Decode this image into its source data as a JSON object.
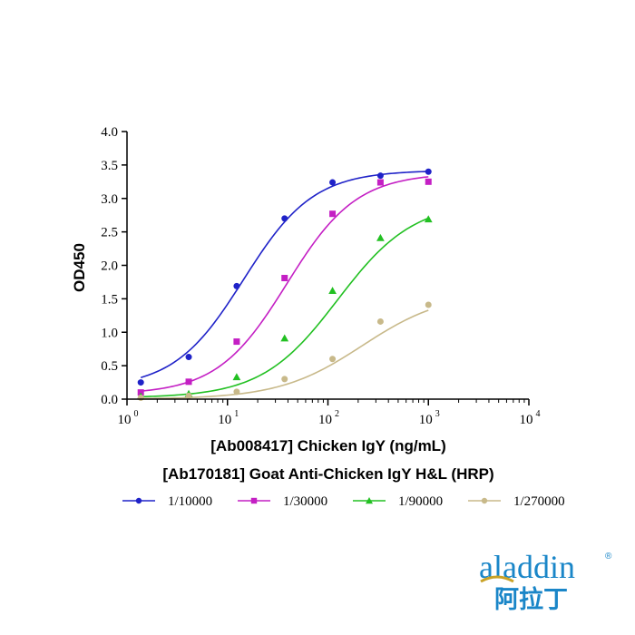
{
  "chart_data": {
    "type": "scatter",
    "xscale": "log",
    "xlim": [
      1,
      10000
    ],
    "ylim": [
      0,
      4.0
    ],
    "x_tick_base": "10",
    "x_tick_exponents": [
      "0",
      "1",
      "2",
      "3",
      "4"
    ],
    "y_ticks": [
      "0.0",
      "0.5",
      "1.0",
      "1.5",
      "2.0",
      "2.5",
      "3.0",
      "3.5",
      "4.0"
    ],
    "ylabel": "OD450",
    "xlabel_line1": "[Ab008417] Chicken IgY (ng/mL)",
    "xlabel_line2": "[Ab170181] Goat Anti-Chicken IgY H&L (HRP)",
    "x": [
      1.372,
      4.115,
      12.35,
      37.04,
      111.1,
      333.3,
      1000
    ],
    "series": [
      {
        "name": "1/10000",
        "color": "#1f22c8",
        "marker": "circle",
        "values": [
          0.25,
          0.63,
          1.69,
          2.7,
          3.24,
          3.34,
          3.4
        ],
        "fit": {
          "bottom": 0.16,
          "top": 3.42,
          "ec50": 14.5,
          "hill": 1.25
        }
      },
      {
        "name": "1/30000",
        "color": "#c41fc4",
        "marker": "square",
        "values": [
          0.1,
          0.26,
          0.86,
          1.81,
          2.77,
          3.24,
          3.25
        ],
        "fit": {
          "bottom": 0.07,
          "top": 3.38,
          "ec50": 39,
          "hill": 1.25
        }
      },
      {
        "name": "1/90000",
        "color": "#22c022",
        "marker": "triangle",
        "values": [
          0.04,
          0.08,
          0.33,
          0.91,
          1.62,
          2.41,
          2.69
        ],
        "fit": {
          "bottom": 0.02,
          "top": 2.95,
          "ec50": 125,
          "hill": 1.15
        }
      },
      {
        "name": "1/270000",
        "color": "#c8b98a",
        "marker": "circle",
        "values": [
          0.02,
          0.05,
          0.11,
          0.3,
          0.6,
          1.16,
          1.41
        ],
        "fit": {
          "bottom": 0.0,
          "top": 1.6,
          "ec50": 220,
          "hill": 1.05
        }
      }
    ],
    "legend_position": "bottom"
  },
  "logo": {
    "latin": "aladdin",
    "registered": "®",
    "cjk": "阿拉丁",
    "color": "#1a86c8",
    "accent_color": "#c9a227"
  }
}
